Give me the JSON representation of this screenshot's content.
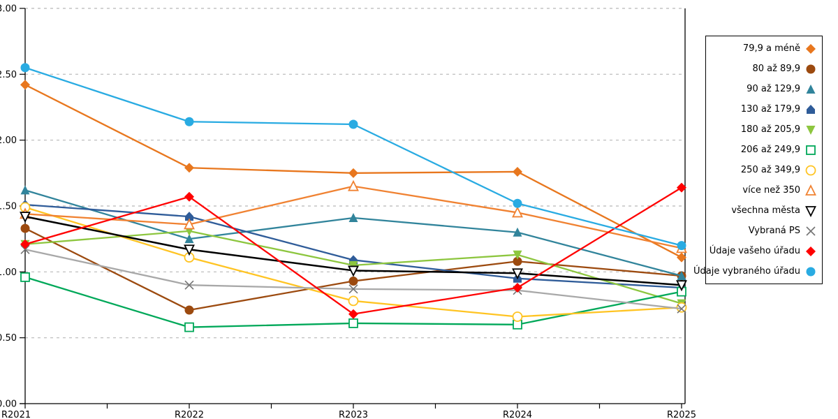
{
  "chart_data": {
    "type": "line",
    "categories": [
      "R2021",
      "R2022",
      "R2023",
      "R2024",
      "R2025"
    ],
    "y_tick_labels": [
      "3.00",
      "2.50",
      "2.00",
      "1.50",
      "1.00",
      "0.50",
      "0.00"
    ],
    "ylim": [
      0,
      3
    ],
    "y_tick_step": 0.5,
    "grid": "horizontal-dashed",
    "legend_position": "right",
    "series": [
      {
        "name": "79,9 a méně",
        "marker": "diamond",
        "fill": "solid",
        "color": "#E8771E",
        "values": [
          2.42,
          1.79,
          1.75,
          1.76,
          1.11
        ]
      },
      {
        "name": "80 až 89,9",
        "marker": "circle",
        "fill": "solid",
        "color": "#9C4A0F",
        "values": [
          1.33,
          0.71,
          0.93,
          1.08,
          0.97
        ]
      },
      {
        "name": "90 až 129,9",
        "marker": "triangle-up",
        "fill": "solid",
        "color": "#31849B",
        "values": [
          1.62,
          1.25,
          1.41,
          1.3,
          0.97
        ]
      },
      {
        "name": "130 až 179,9",
        "marker": "pentagon",
        "fill": "solid",
        "color": "#2F5C99",
        "values": [
          1.51,
          1.42,
          1.09,
          0.95,
          0.88
        ]
      },
      {
        "name": "180 až 205,9",
        "marker": "triangle-down",
        "fill": "solid",
        "color": "#8DC63F",
        "values": [
          1.21,
          1.31,
          1.05,
          1.13,
          0.76
        ]
      },
      {
        "name": "206 až 249,9",
        "marker": "square",
        "fill": "open",
        "color": "#00A859",
        "values": [
          0.96,
          0.58,
          0.61,
          0.6,
          0.85
        ]
      },
      {
        "name": "250 až 349,9",
        "marker": "circle",
        "fill": "open",
        "color": "#FFC423",
        "values": [
          1.49,
          1.11,
          0.78,
          0.66,
          0.73
        ]
      },
      {
        "name": "více než 350",
        "marker": "triangle-up",
        "fill": "open",
        "color": "#F08232",
        "values": [
          1.44,
          1.36,
          1.65,
          1.45,
          1.18
        ]
      },
      {
        "name": "všechna města",
        "marker": "triangle-down",
        "fill": "open",
        "color": "#000000",
        "values": [
          1.42,
          1.17,
          1.01,
          0.99,
          0.9
        ]
      },
      {
        "name": "Vybraná PS",
        "marker": "x",
        "fill": "line",
        "color": "#A8A8A8",
        "marker_color": "#737373",
        "values": [
          1.17,
          0.9,
          0.87,
          0.86,
          0.72
        ]
      },
      {
        "name": "Údaje vašeho úřadu",
        "marker": "diamond",
        "fill": "solid",
        "color": "#FF0000",
        "values": [
          1.21,
          1.57,
          0.68,
          0.88,
          1.64
        ]
      },
      {
        "name": "Údaje vybraného úřadu",
        "marker": "circle",
        "fill": "solid",
        "color": "#29ABE2",
        "values": [
          2.55,
          2.14,
          2.12,
          1.52,
          1.2
        ]
      }
    ]
  }
}
